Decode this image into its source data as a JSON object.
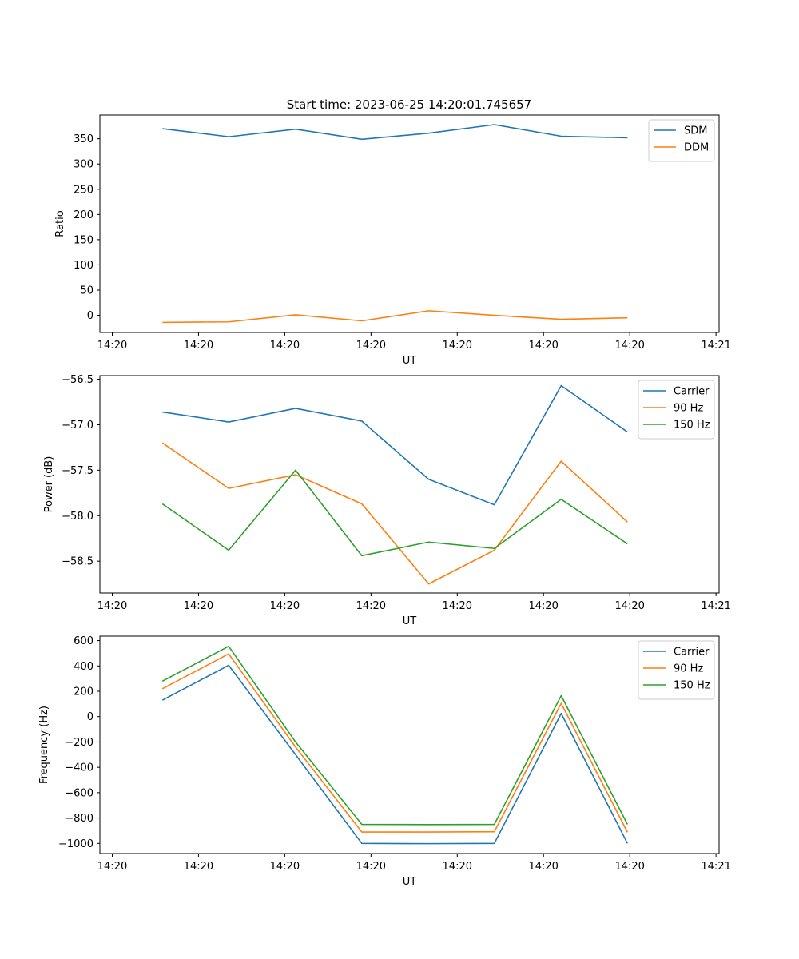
{
  "figure": {
    "title": "Start time: 2023-06-25 14:20:01.745657"
  },
  "chart_data": [
    {
      "type": "line",
      "title": "Start time: 2023-06-25 14:20:01.745657",
      "xlabel": "UT",
      "ylabel": "Ratio",
      "x_tick_labels": [
        "14:20",
        "14:20",
        "14:20",
        "14:20",
        "14:20",
        "14:20",
        "14:20",
        "14:21"
      ],
      "y_ticks": [
        0,
        50,
        100,
        150,
        200,
        250,
        300,
        350
      ],
      "ylim": [
        -34,
        397
      ],
      "grid": false,
      "legend_position": "top-right",
      "x_index": [
        0,
        1,
        2,
        3,
        4,
        5,
        6,
        7
      ],
      "series": [
        {
          "name": "SDM",
          "color": "#1f77b4",
          "values": [
            370,
            354,
            369,
            349,
            361,
            378,
            355,
            352
          ]
        },
        {
          "name": "DDM",
          "color": "#ff7f0e",
          "values": [
            -14,
            -13,
            1,
            -11,
            9,
            0,
            -8,
            -5
          ]
        }
      ]
    },
    {
      "type": "line",
      "title": "",
      "xlabel": "UT",
      "ylabel": "Power (dB)",
      "x_tick_labels": [
        "14:20",
        "14:20",
        "14:20",
        "14:20",
        "14:20",
        "14:20",
        "14:20",
        "14:21"
      ],
      "y_ticks": [
        -58.5,
        -58.0,
        -57.5,
        -57.0,
        -56.5
      ],
      "y_tick_labels": [
        "−58.5",
        "−58.0",
        "−57.5",
        "−57.0",
        "−56.5"
      ],
      "ylim": [
        -58.85,
        -56.46
      ],
      "grid": false,
      "legend_position": "top-right",
      "x_index": [
        0,
        1,
        2,
        3,
        4,
        5,
        6,
        7
      ],
      "series": [
        {
          "name": "Carrier",
          "color": "#1f77b4",
          "values": [
            -56.86,
            -56.97,
            -56.82,
            -56.96,
            -57.6,
            -57.88,
            -56.57,
            -57.08
          ]
        },
        {
          "name": "90 Hz",
          "color": "#ff7f0e",
          "values": [
            -57.2,
            -57.7,
            -57.55,
            -57.87,
            -58.75,
            -58.38,
            -57.4,
            -58.07
          ]
        },
        {
          "name": "150 Hz",
          "color": "#2ca02c",
          "values": [
            -57.87,
            -58.38,
            -57.5,
            -58.44,
            -58.29,
            -58.36,
            -57.82,
            -58.31
          ]
        }
      ]
    },
    {
      "type": "line",
      "title": "",
      "xlabel": "UT",
      "ylabel": "Frequency (Hz)",
      "x_tick_labels": [
        "14:20",
        "14:20",
        "14:20",
        "14:20",
        "14:20",
        "14:20",
        "14:20",
        "14:21"
      ],
      "y_ticks": [
        -1000,
        -800,
        -600,
        -400,
        -200,
        0,
        200,
        400,
        600
      ],
      "y_tick_labels": [
        "−1000",
        "−800",
        "−600",
        "−400",
        "−200",
        "0",
        "200",
        "400",
        "600"
      ],
      "ylim": [
        -1080,
        635
      ],
      "grid": false,
      "legend_position": "top-right",
      "x_index": [
        0,
        1,
        2,
        3,
        4,
        5,
        6,
        7
      ],
      "series": [
        {
          "name": "Carrier",
          "color": "#1f77b4",
          "values": [
            130,
            405,
            -300,
            -1000,
            -1002,
            -1000,
            25,
            -1000
          ]
        },
        {
          "name": "90 Hz",
          "color": "#ff7f0e",
          "values": [
            220,
            495,
            -240,
            -910,
            -910,
            -908,
            105,
            -912
          ]
        },
        {
          "name": "150 Hz",
          "color": "#2ca02c",
          "values": [
            280,
            555,
            -200,
            -850,
            -852,
            -850,
            165,
            -850
          ]
        }
      ]
    }
  ]
}
